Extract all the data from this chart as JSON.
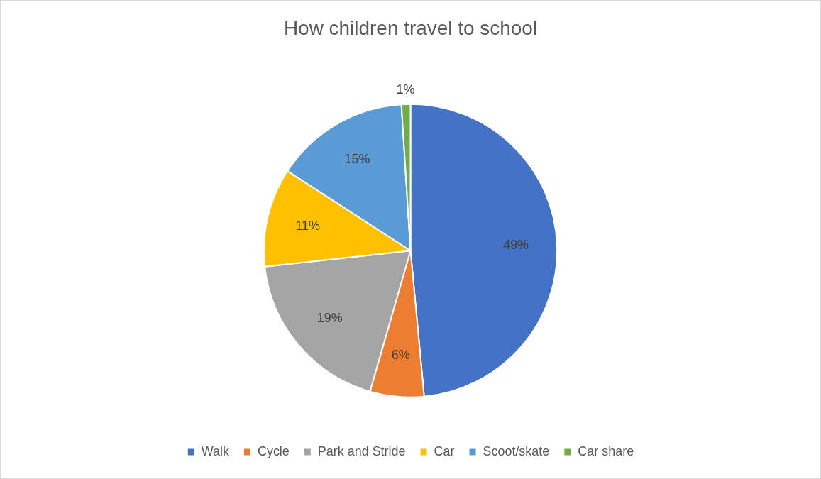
{
  "chart_data": {
    "type": "pie",
    "title": "How children travel to school",
    "categories": [
      "Walk",
      "Cycle",
      "Park and Stride",
      "Car",
      "Scoot/skate",
      "Car share"
    ],
    "values": [
      49,
      6,
      19,
      11,
      15,
      1
    ],
    "colors": [
      "#4472c4",
      "#ed7d31",
      "#a5a5a5",
      "#ffc000",
      "#5b9bd5",
      "#70ad47"
    ],
    "value_labels": [
      "49%",
      "6%",
      "19%",
      "11%",
      "15%",
      "1%"
    ],
    "legend": "bottom"
  }
}
